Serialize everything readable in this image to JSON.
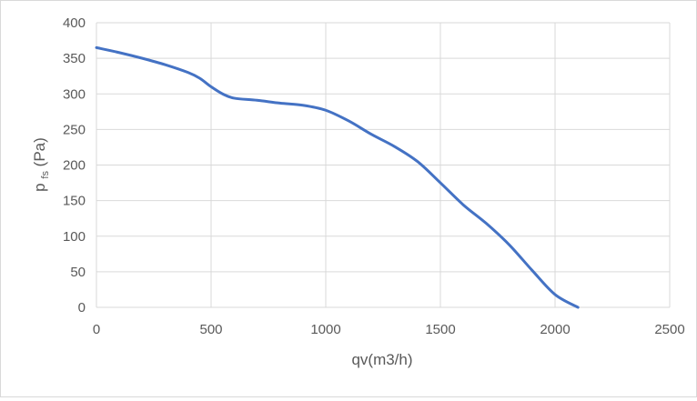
{
  "chart_data": {
    "type": "line",
    "title": "",
    "xlabel": "qv(m3/h)",
    "ylabel": {
      "base": "p",
      "subscript": "fs",
      "suffix": "(Pa)"
    },
    "xlim": [
      0,
      2500
    ],
    "ylim": [
      0,
      400
    ],
    "x_ticks": [
      0,
      500,
      1000,
      1500,
      2000,
      2500
    ],
    "y_ticks": [
      0,
      50,
      100,
      150,
      200,
      250,
      300,
      350,
      400
    ],
    "grid": true,
    "legend": "none",
    "series": [
      {
        "color": "#4472C4",
        "points": [
          [
            0,
            365
          ],
          [
            100,
            358
          ],
          [
            200,
            350
          ],
          [
            300,
            341
          ],
          [
            400,
            330
          ],
          [
            450,
            322
          ],
          [
            500,
            310
          ],
          [
            550,
            300
          ],
          [
            600,
            294
          ],
          [
            700,
            291
          ],
          [
            800,
            287
          ],
          [
            900,
            284
          ],
          [
            1000,
            277
          ],
          [
            1100,
            262
          ],
          [
            1200,
            243
          ],
          [
            1300,
            226
          ],
          [
            1400,
            205
          ],
          [
            1500,
            175
          ],
          [
            1600,
            144
          ],
          [
            1700,
            118
          ],
          [
            1800,
            88
          ],
          [
            1900,
            52
          ],
          [
            2000,
            18
          ],
          [
            2100,
            0
          ]
        ]
      }
    ]
  }
}
